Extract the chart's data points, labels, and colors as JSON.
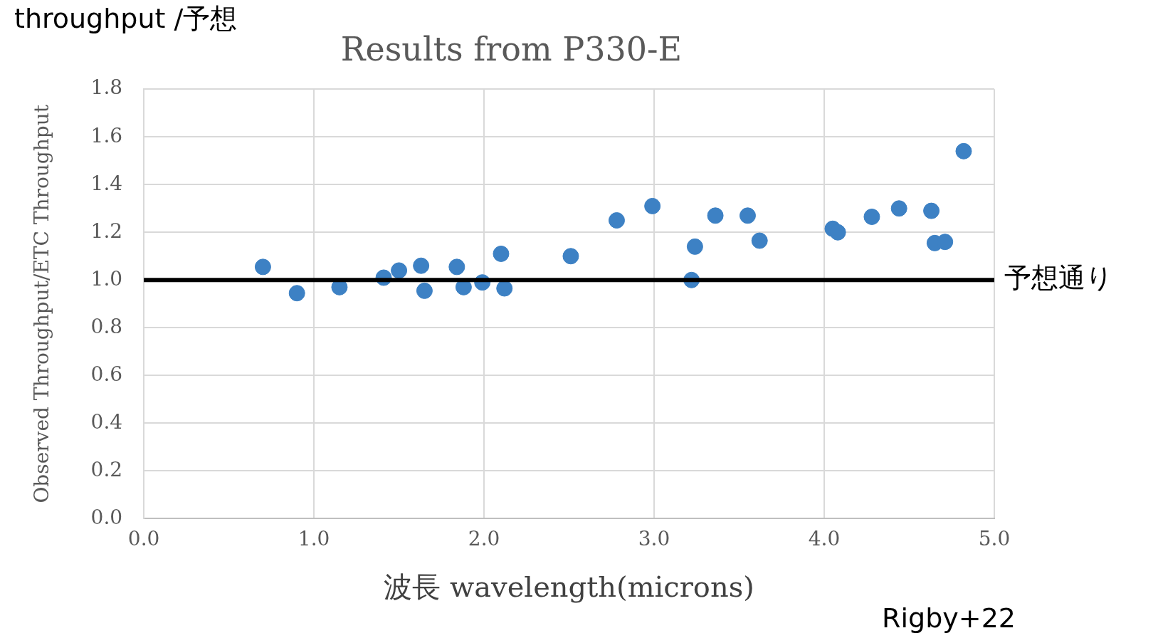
{
  "chart_data": {
    "type": "scatter",
    "title": "Results from P330-E",
    "xlabel": "波長 wavelength(microns)",
    "ylabel": "Observed Throughput/ETC Throughput",
    "annotations": [
      "throughput /予想",
      "Rigby+22"
    ],
    "x": [
      0.7,
      0.9,
      1.15,
      1.41,
      1.5,
      1.63,
      1.65,
      1.84,
      1.88,
      1.99,
      2.1,
      2.12,
      2.51,
      2.78,
      2.99,
      3.22,
      3.24,
      3.36,
      3.55,
      3.62,
      4.05,
      4.08,
      4.28,
      4.44,
      4.63,
      4.65,
      4.71,
      4.82
    ],
    "series": [
      {
        "color": "#3d81c4",
        "values": [
          1.055,
          0.945,
          0.97,
          1.01,
          1.04,
          1.06,
          0.955,
          1.055,
          0.97,
          0.99,
          1.11,
          0.965,
          1.1,
          1.25,
          1.31,
          1.0,
          1.14,
          1.27,
          1.27,
          1.165,
          1.215,
          1.2,
          1.265,
          1.3,
          1.29,
          1.155,
          1.16,
          1.54
        ]
      }
    ],
    "xlim": [
      0,
      5
    ],
    "xticks": [
      {
        "value": 0,
        "label": "0.0"
      },
      {
        "value": 1,
        "label": "1.0"
      },
      {
        "value": 2,
        "label": "2.0"
      },
      {
        "value": 3,
        "label": "3.0"
      },
      {
        "value": 4,
        "label": "4.0"
      },
      {
        "value": 5,
        "label": "5.0"
      }
    ],
    "ylim": [
      0,
      1.8
    ],
    "yticks": [
      {
        "value": 0,
        "label": "0.0"
      },
      {
        "value": 0.2,
        "label": "0.2"
      },
      {
        "value": 0.4,
        "label": "0.4"
      },
      {
        "value": 0.6,
        "label": "0.6"
      },
      {
        "value": 0.8,
        "label": "0.8"
      },
      {
        "value": 1,
        "label": "1.0"
      },
      {
        "value": 1.2,
        "label": "1.2"
      },
      {
        "value": 1.4,
        "label": "1.4"
      },
      {
        "value": 1.6,
        "label": "1.6"
      },
      {
        "value": 1.8,
        "label": "1.8"
      }
    ],
    "ref_lines": [
      {
        "axis": "y",
        "value": 1,
        "label": "予想通り",
        "color": "#000000"
      }
    ],
    "grid": true,
    "legend": false,
    "marker": "circle"
  }
}
